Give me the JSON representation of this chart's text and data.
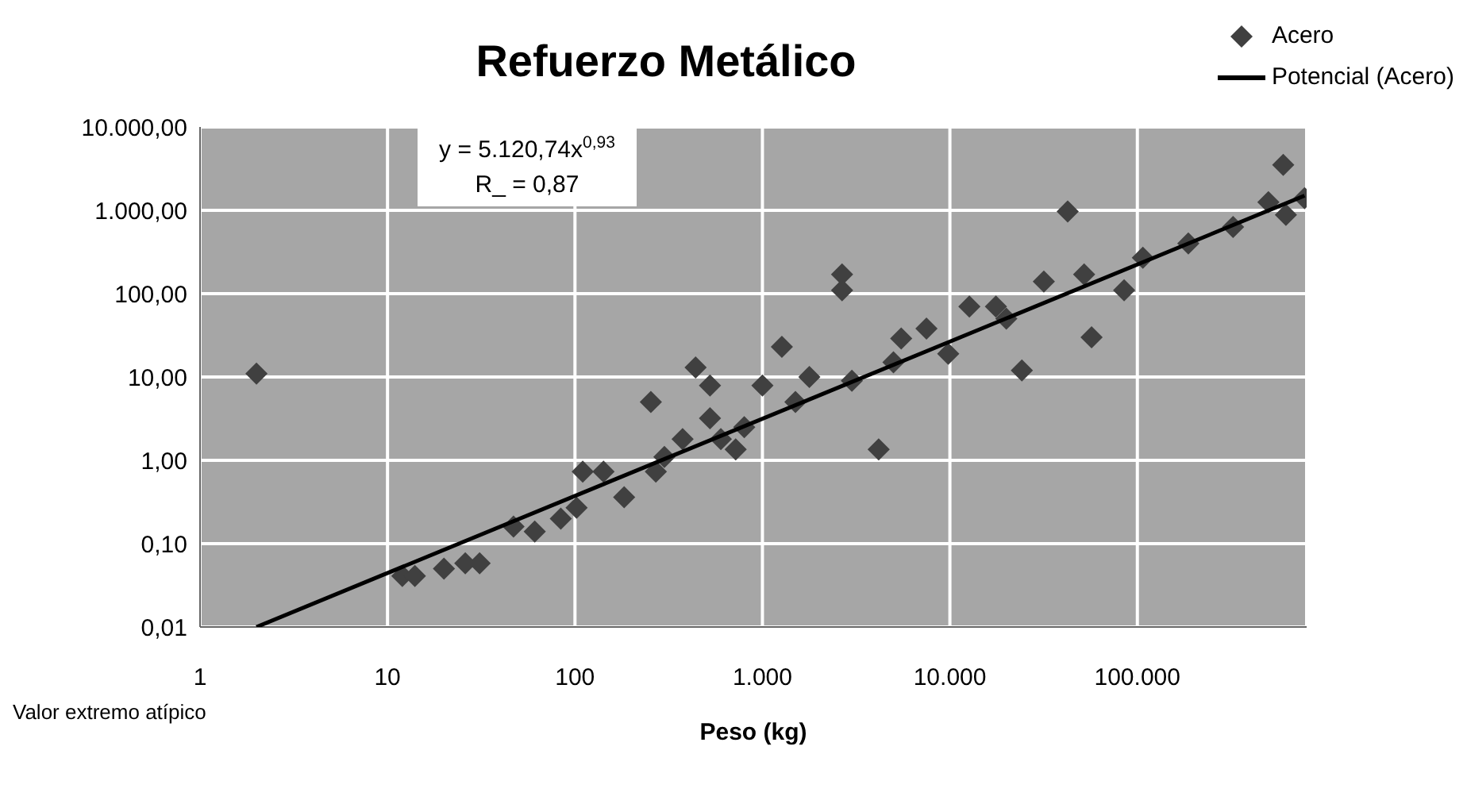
{
  "chart_data": {
    "type": "scatter",
    "title": "Refuerzo Metálico",
    "xlabel": "Peso (kg)",
    "annotations": [
      "y = 5.120,74x$^{0,93}$",
      "R_ = 0,87",
      "Valor extremo atípico"
    ],
    "log": "xy",
    "grid": true,
    "legend": "top right",
    "xlim": [
      1,
      800000
    ],
    "xticks": [
      1,
      10,
      100,
      {
        "value": 1000,
        "label": "1.000"
      },
      {
        "value": 10000,
        "label": "10.000"
      },
      {
        "value": 100000,
        "label": "100.000"
      }
    ],
    "ylim": [
      0.01,
      10000
    ],
    "yticks": [
      {
        "value": 0.01,
        "label": "0,01"
      },
      {
        "value": 0.1,
        "label": "0,10"
      },
      {
        "value": 1,
        "label": "1,00"
      },
      {
        "value": 10,
        "label": "10,00"
      },
      {
        "value": 100,
        "label": "100,00"
      },
      {
        "value": 1000,
        "label": "1.000,00"
      },
      {
        "value": 10000,
        "label": "10.000,00"
      }
    ],
    "series": [
      {
        "name": "Acero",
        "marker": "diamond",
        "color": "#404040",
        "x": [
          2,
          12,
          14,
          20,
          26,
          31,
          47,
          61,
          84,
          102,
          110,
          142,
          183,
          254,
          270,
          300,
          375,
          440,
          525,
          525,
          600,
          720,
          800,
          1000,
          1270,
          1500,
          1780,
          2660,
          2660,
          3000,
          4170,
          5000,
          5500,
          7500,
          9800,
          12700,
          17600,
          20000,
          24200,
          31700,
          42500,
          52000,
          57000,
          85000,
          107000,
          187000,
          324000,
          500000,
          600000,
          620000,
          780000
        ],
        "values": [
          11,
          0.041,
          0.041,
          0.05,
          0.058,
          0.058,
          0.16,
          0.14,
          0.2,
          0.27,
          0.73,
          0.73,
          0.36,
          5,
          0.73,
          1.1,
          1.8,
          13,
          7.9,
          3.2,
          1.8,
          1.35,
          2.5,
          7.9,
          23,
          5,
          10,
          170,
          110,
          9,
          1.35,
          15,
          29,
          38,
          19,
          70,
          70,
          50,
          12,
          140,
          970,
          170,
          30,
          110,
          270,
          400,
          630,
          1250,
          3500,
          880,
          1400
        ]
      },
      {
        "name": "Potencial (Acero)",
        "type": "line",
        "marker": "none",
        "color": "#000000",
        "x": [
          2,
          780000
        ],
        "values": [
          0.01,
          1500
        ]
      }
    ]
  }
}
